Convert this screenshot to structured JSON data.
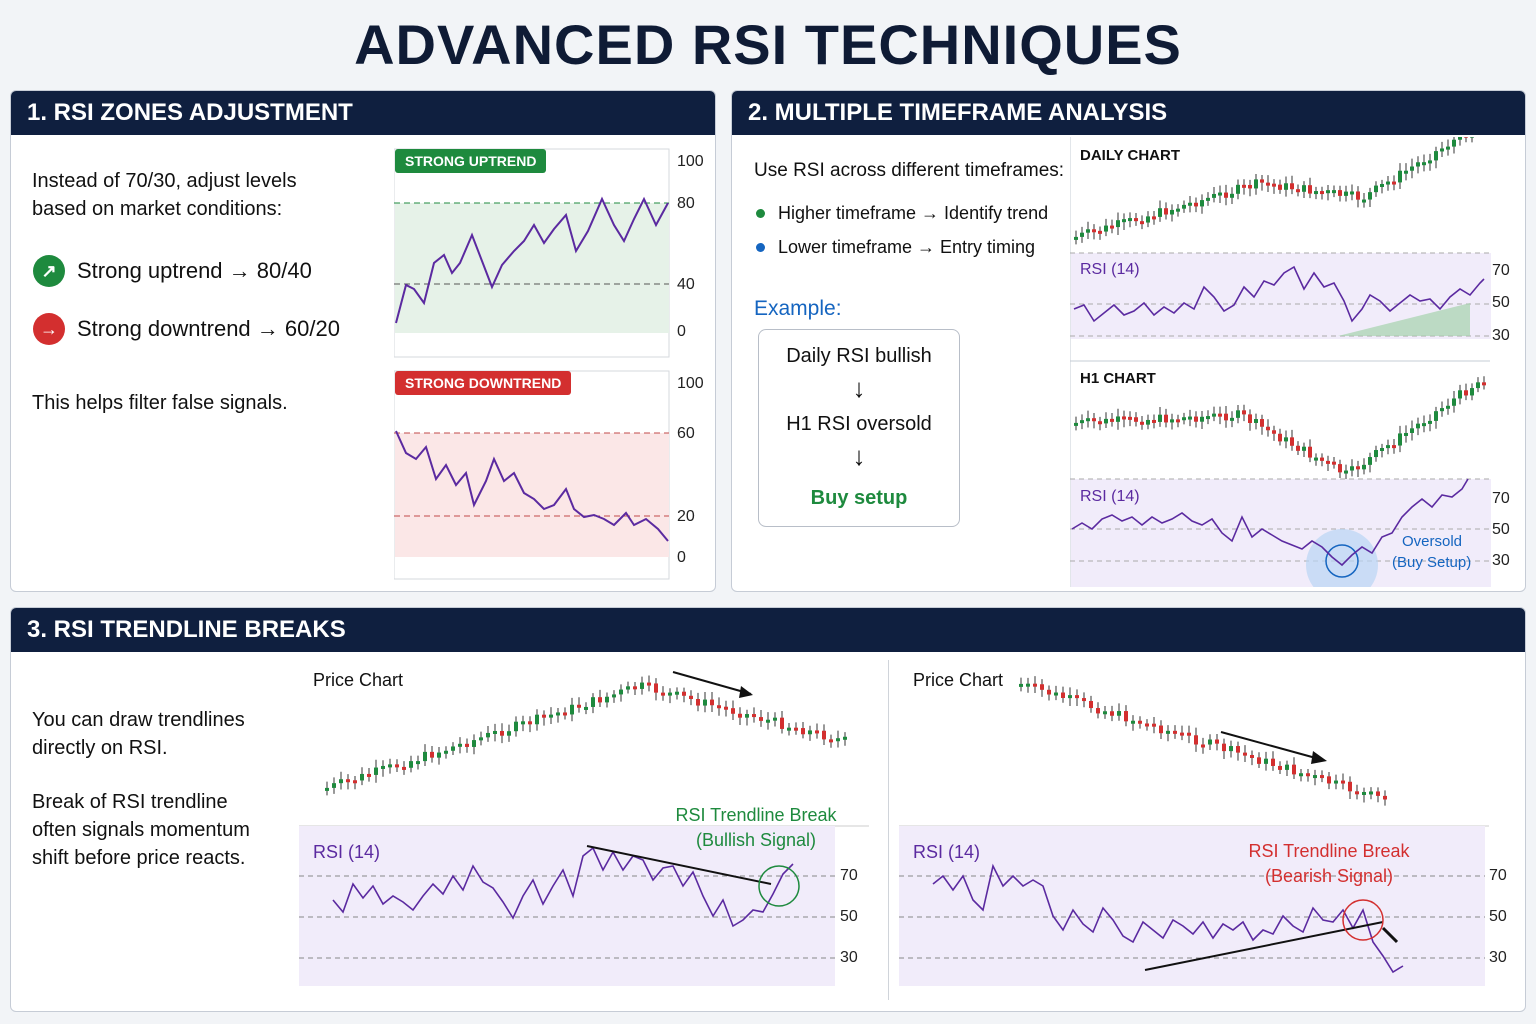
{
  "title": "ADVANCED RSI TECHNIQUES",
  "colors": {
    "navy": "#0f1f3f",
    "green": "#1e8a3e",
    "red": "#d32f2f",
    "purple": "#6a35b8",
    "blue": "#1565c0"
  },
  "panel1": {
    "heading": "1. RSI ZONES ADJUSTMENT",
    "intro_line1": "Instead of 70/30, adjust levels",
    "intro_line2": "based on market conditions:",
    "uptrend_text": "Strong uptrend → 80/40",
    "downtrend_text": "Strong downtrend → 60/20",
    "icons": {
      "uptrend": "up-arrow-icon",
      "downtrend": "right-arrow-icon"
    },
    "footer": "This helps filter false signals.",
    "up_chart": {
      "badge": "STRONG UPTREND",
      "ticks": [
        "100",
        "80",
        "40",
        "0"
      ]
    },
    "down_chart": {
      "badge": "STRONG DOWNTREND",
      "ticks": [
        "100",
        "60",
        "20",
        "0"
      ]
    }
  },
  "panel2": {
    "heading": "2. MULTIPLE TIMEFRAME ANALYSIS",
    "intro": "Use RSI across different timeframes:",
    "bullet1": "Higher timeframe → Identify trend",
    "bullet2": "Lower timeframe → Entry timing",
    "example_label": "Example:",
    "flow": {
      "step1": "Daily RSI bullish",
      "arrow": "↓",
      "step2": "H1 RSI oversold",
      "step3": "Buy setup"
    },
    "daily": {
      "label": "DAILY CHART",
      "rsi_label": "RSI (14)",
      "ticks": [
        "70",
        "50",
        "30"
      ]
    },
    "h1": {
      "label": "H1 CHART",
      "rsi_label": "RSI (14)",
      "ticks": [
        "70",
        "50",
        "30"
      ],
      "note_line1": "Oversold",
      "note_line2": "(Buy Setup)"
    }
  },
  "panel3": {
    "heading": "3. RSI TRENDLINE BREAKS",
    "text1_line1": "You can draw trendlines",
    "text1_line2": "directly on RSI.",
    "text2_line1": "Break of RSI trendline",
    "text2_line2": "often signals momentum",
    "text2_line3": "shift before price reacts.",
    "left": {
      "price_label": "Price Chart",
      "rsi_label": "RSI (14)",
      "break_line1": "RSI Trendline Break",
      "break_line2": "(Bullish Signal)",
      "ticks": [
        "70",
        "50",
        "30"
      ]
    },
    "right": {
      "price_label": "Price Chart",
      "rsi_label": "RSI (14)",
      "break_line1": "RSI Trendline Break",
      "break_line2": "(Bearish Signal)",
      "ticks": [
        "70",
        "50",
        "30"
      ]
    }
  }
}
